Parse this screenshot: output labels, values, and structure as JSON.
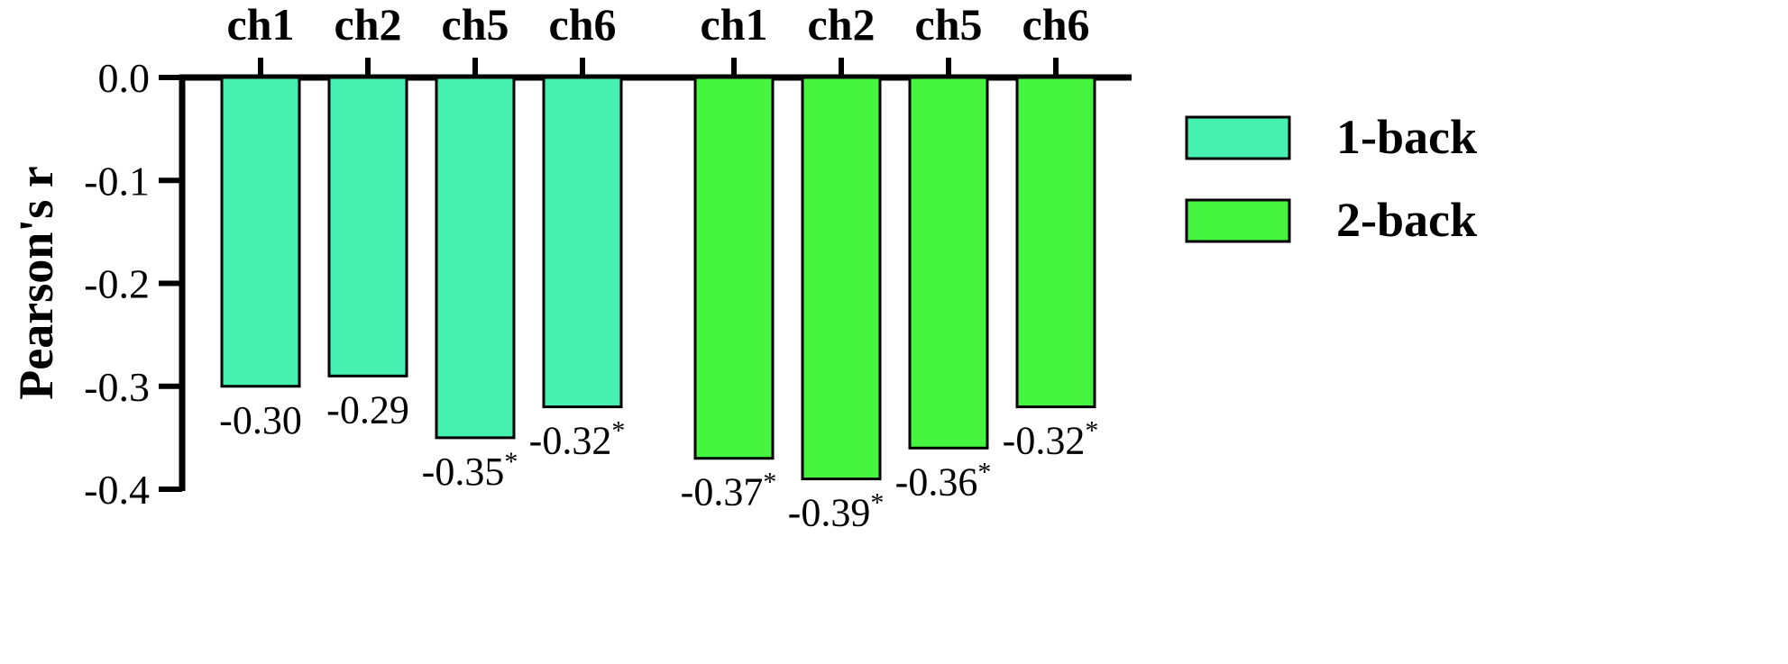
{
  "chart_data": {
    "type": "bar",
    "ylabel": "Pearson's r",
    "ylim": [
      -0.4,
      0.0
    ],
    "yticks": [
      "0.0",
      "-0.1",
      "-0.2",
      "-0.3",
      "-0.4"
    ],
    "yticks_values": [
      0.0,
      -0.1,
      -0.2,
      -0.3,
      -0.4
    ],
    "categories_axis": "top",
    "legend_position": "right",
    "groups": [
      {
        "series": "1-back",
        "color": "#45F0B0",
        "bars": [
          {
            "category": "ch1",
            "value": -0.3,
            "label": "-0.30",
            "significant": false
          },
          {
            "category": "ch2",
            "value": -0.29,
            "label": "-0.29",
            "significant": false
          },
          {
            "category": "ch5",
            "value": -0.35,
            "label": "-0.35",
            "significant": true
          },
          {
            "category": "ch6",
            "value": -0.32,
            "label": "-0.32",
            "significant": true
          }
        ]
      },
      {
        "series": "2-back",
        "color": "#45F53F",
        "bars": [
          {
            "category": "ch1",
            "value": -0.37,
            "label": "-0.37",
            "significant": true
          },
          {
            "category": "ch2",
            "value": -0.39,
            "label": "-0.39",
            "significant": true
          },
          {
            "category": "ch5",
            "value": -0.36,
            "label": "-0.36",
            "significant": true
          },
          {
            "category": "ch6",
            "value": -0.32,
            "label": "-0.32",
            "significant": true
          }
        ]
      }
    ],
    "legend": [
      {
        "name": "1-back",
        "color": "#45F0B0"
      },
      {
        "name": "2-back",
        "color": "#45F53F"
      }
    ],
    "significance_marker": "*"
  }
}
